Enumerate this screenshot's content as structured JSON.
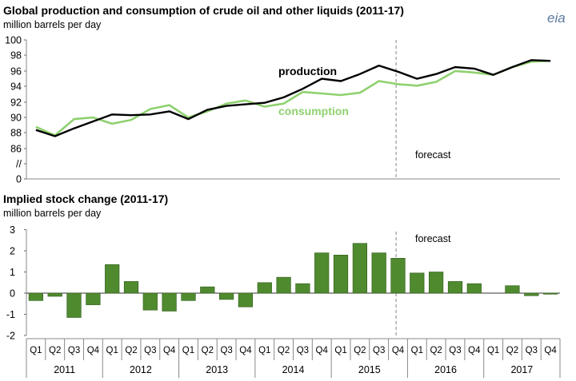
{
  "logo": {
    "text": "eia"
  },
  "chart_data": [
    {
      "type": "line",
      "title": "Global production  and consumption  of crude oil and other liquids (2011-17)",
      "ylabel": "million barrels  per day",
      "y_ticks": [
        "100",
        "98",
        "96",
        "94",
        "92",
        "90",
        "88",
        "86",
        "//",
        "0"
      ],
      "ylim": [
        86,
        100
      ],
      "x": [
        "2011Q1",
        "2011Q2",
        "2011Q3",
        "2011Q4",
        "2012Q1",
        "2012Q2",
        "2012Q3",
        "2012Q4",
        "2013Q1",
        "2013Q2",
        "2013Q3",
        "2013Q4",
        "2014Q1",
        "2014Q2",
        "2014Q3",
        "2014Q4",
        "2015Q1",
        "2015Q2",
        "2015Q3",
        "2015Q4",
        "2016Q1",
        "2016Q2",
        "2016Q3",
        "2016Q4",
        "2017Q1",
        "2017Q2",
        "2017Q3",
        "2017Q4"
      ],
      "series": [
        {
          "name": "production",
          "color": "#000000",
          "values": [
            88.4,
            87.6,
            88.6,
            89.5,
            90.4,
            90.3,
            90.4,
            90.8,
            89.8,
            91.0,
            91.5,
            91.7,
            91.9,
            92.6,
            93.7,
            95.0,
            94.7,
            95.6,
            96.7,
            95.9,
            95.0,
            95.6,
            96.5,
            96.3,
            95.5,
            96.5,
            97.4,
            97.3
          ]
        },
        {
          "name": "consumption",
          "color": "#8fd16f",
          "values": [
            88.8,
            87.7,
            89.8,
            90.0,
            89.2,
            89.7,
            91.1,
            91.6,
            90.0,
            90.8,
            91.8,
            92.2,
            91.4,
            91.8,
            93.3,
            93.1,
            92.9,
            93.2,
            94.7,
            94.3,
            94.1,
            94.6,
            96.0,
            95.8,
            95.5,
            96.5,
            97.2,
            97.3
          ]
        }
      ],
      "forecast_start": "2015Q4",
      "annotations": {
        "forecast": "forecast"
      }
    },
    {
      "type": "bar",
      "title": "Implied stock change (2011-17)",
      "ylabel": "million barrels  per day",
      "ylim": [
        -2,
        3
      ],
      "y_ticks": [
        "3",
        "2",
        "1",
        "0",
        "-1",
        "-2"
      ],
      "quarters": [
        "Q1",
        "Q2",
        "Q3",
        "Q4"
      ],
      "years": [
        "2011",
        "2012",
        "2013",
        "2014",
        "2015",
        "2016",
        "2017"
      ],
      "values": [
        -0.35,
        -0.15,
        -1.15,
        -0.55,
        1.35,
        0.55,
        -0.8,
        -0.85,
        -0.35,
        0.3,
        -0.3,
        -0.65,
        0.5,
        0.75,
        0.45,
        1.9,
        1.8,
        2.35,
        1.9,
        1.65,
        0.95,
        1.0,
        0.55,
        0.45,
        0.0,
        0.35,
        -0.12,
        -0.05
      ],
      "bar_color": "#4f8a2f",
      "forecast_start": "2015Q4",
      "annotations": {
        "forecast": "forecast"
      }
    }
  ]
}
